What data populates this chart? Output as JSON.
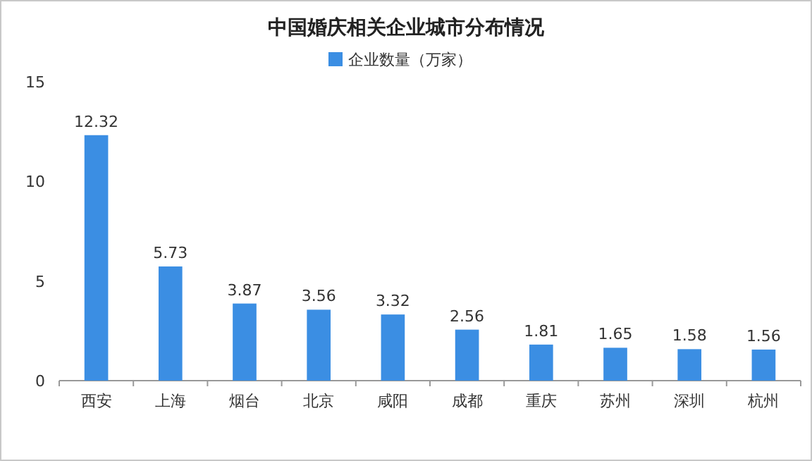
{
  "chart_data": {
    "type": "bar",
    "title": "中国婚庆相关企业城市分布情况",
    "categories": [
      "西安",
      "上海",
      "烟台",
      "北京",
      "咸阳",
      "成都",
      "重庆",
      "苏州",
      "深圳",
      "杭州"
    ],
    "series": [
      {
        "name": "企业数量（万家）",
        "color": "#3b8ee3",
        "values": [
          12.32,
          5.73,
          3.87,
          3.56,
          3.32,
          2.56,
          1.81,
          1.65,
          1.58,
          1.56
        ]
      }
    ],
    "ylim": [
      0,
      15
    ],
    "yticks": [
      0,
      5,
      10,
      15
    ],
    "data_labels": true,
    "legend": "top"
  }
}
